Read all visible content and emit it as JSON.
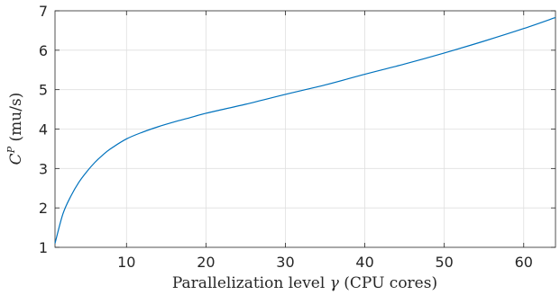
{
  "chart_data": {
    "type": "line",
    "title": "",
    "xlabel_parts": [
      "Parallelization level ",
      "γ",
      " (CPU cores)"
    ],
    "ylabel_parts": [
      "C",
      "P",
      " (mu/s)"
    ],
    "xlim": [
      1,
      64
    ],
    "ylim": [
      1,
      7
    ],
    "xticks": [
      10,
      20,
      30,
      40,
      50,
      60
    ],
    "yticks": [
      1,
      2,
      3,
      4,
      5,
      6,
      7
    ],
    "grid": true,
    "line_color": "#0072BD",
    "series": [
      {
        "x": [
          1,
          2,
          3,
          4,
          5,
          6,
          7,
          8,
          10,
          12,
          14,
          16,
          18,
          20,
          25,
          30,
          35,
          40,
          45,
          50,
          55,
          60,
          64
        ],
        "values": [
          1.1,
          1.85,
          2.3,
          2.65,
          2.92,
          3.15,
          3.34,
          3.5,
          3.75,
          3.92,
          4.06,
          4.18,
          4.29,
          4.4,
          4.63,
          4.88,
          5.12,
          5.39,
          5.65,
          5.93,
          6.23,
          6.55,
          6.83
        ]
      }
    ]
  }
}
